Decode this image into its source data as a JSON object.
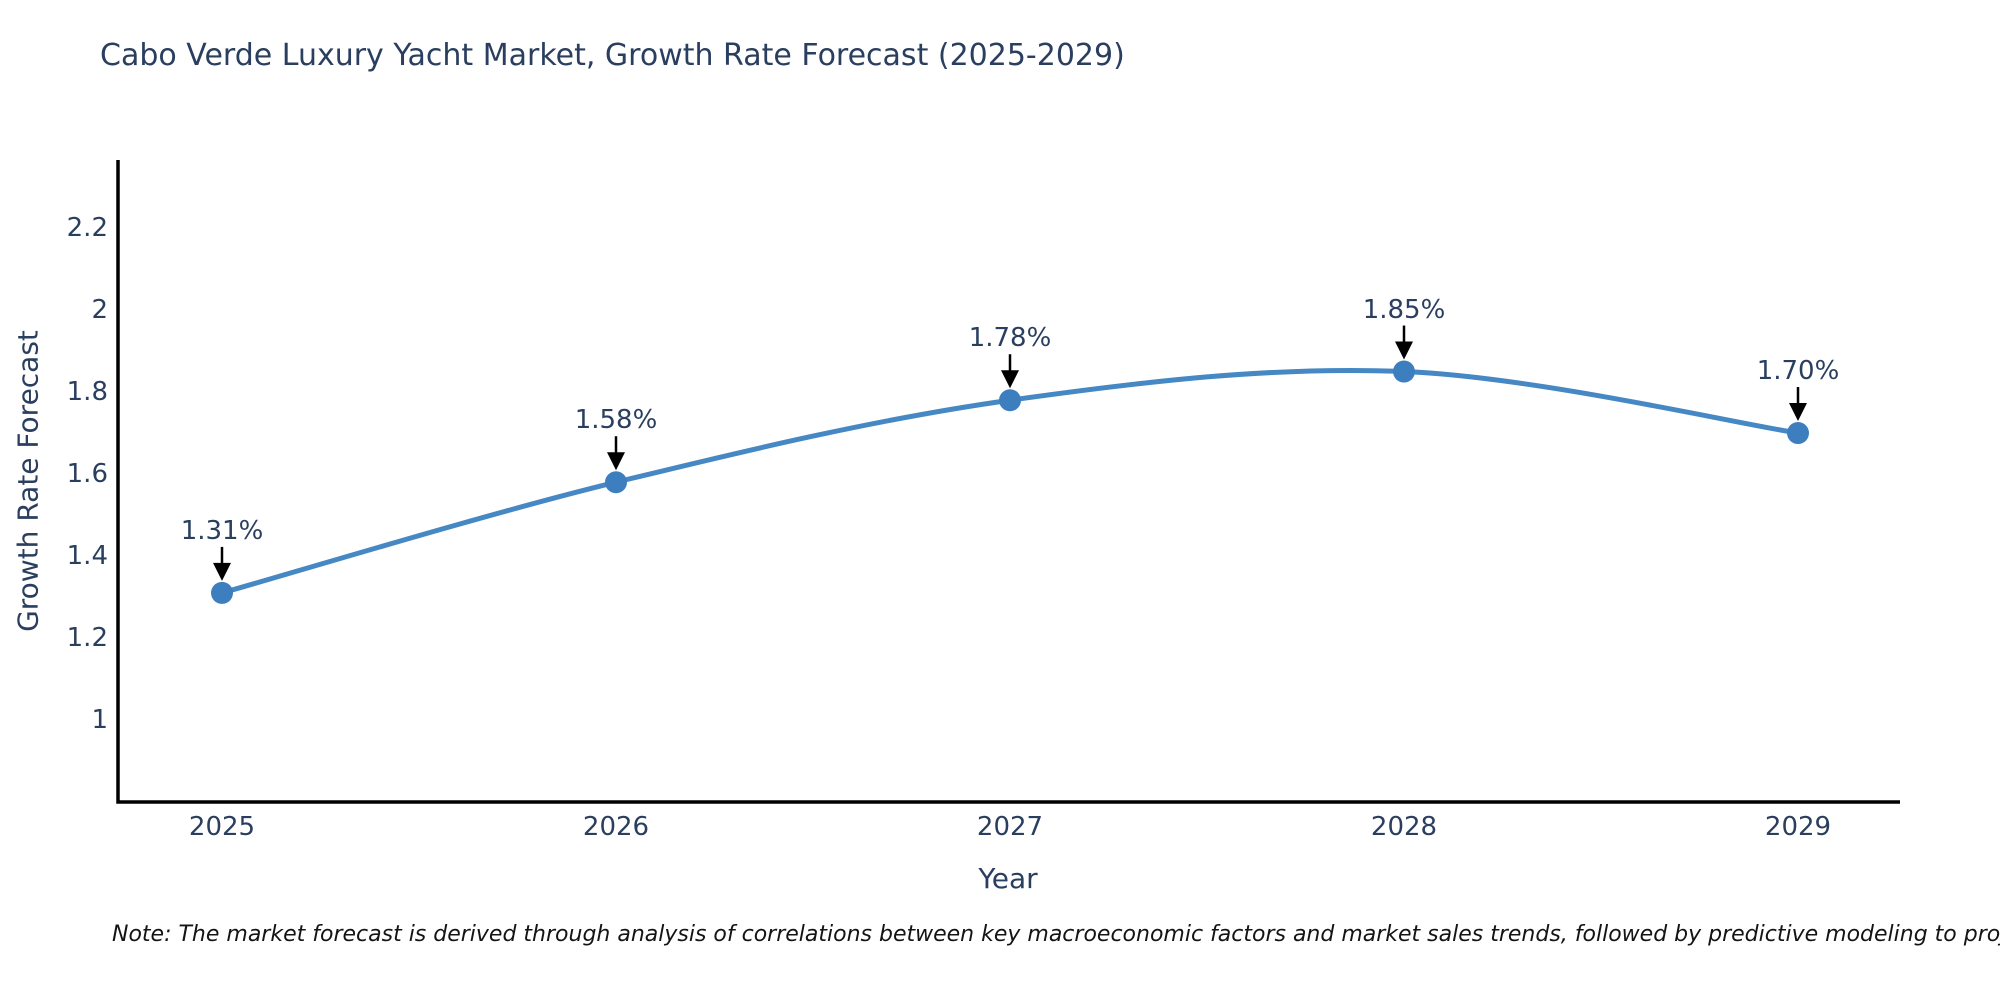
{
  "title": "Cabo Verde Luxury Yacht Market, Growth Rate Forecast (2025-2029)",
  "note": "Note: The market forecast is derived through analysis of correlations between key macroeconomic factors and market sales trends, followed by predictive modeling to project future sales",
  "chart_data": {
    "type": "line",
    "title": "Cabo Verde Luxury Yacht Market, Growth Rate Forecast (2025-2029)",
    "xlabel": "Year",
    "ylabel": "Growth Rate Forecast",
    "categories": [
      "2025",
      "2026",
      "2027",
      "2028",
      "2029"
    ],
    "x": [
      2025,
      2026,
      2027,
      2028,
      2029
    ],
    "values": [
      1.31,
      1.58,
      1.78,
      1.85,
      1.7
    ],
    "point_labels": [
      "1.31%",
      "1.58%",
      "1.78%",
      "1.85%",
      "1.70%"
    ],
    "yticks": [
      1,
      1.2,
      1.4,
      1.6,
      1.8,
      2,
      2.2
    ],
    "ytick_labels": [
      "1",
      "1.2",
      "1.4",
      "1.6",
      "1.8",
      "2",
      "2.2"
    ],
    "ylim": [
      0.8,
      2.366
    ],
    "grid": false,
    "legend": "none",
    "curve": "spline",
    "colors": {
      "line": "#4688c4",
      "marker": "#3d7ebf",
      "axis": "#000000",
      "text": "#2a3f5f",
      "annotation_arrow": "#000000"
    }
  }
}
